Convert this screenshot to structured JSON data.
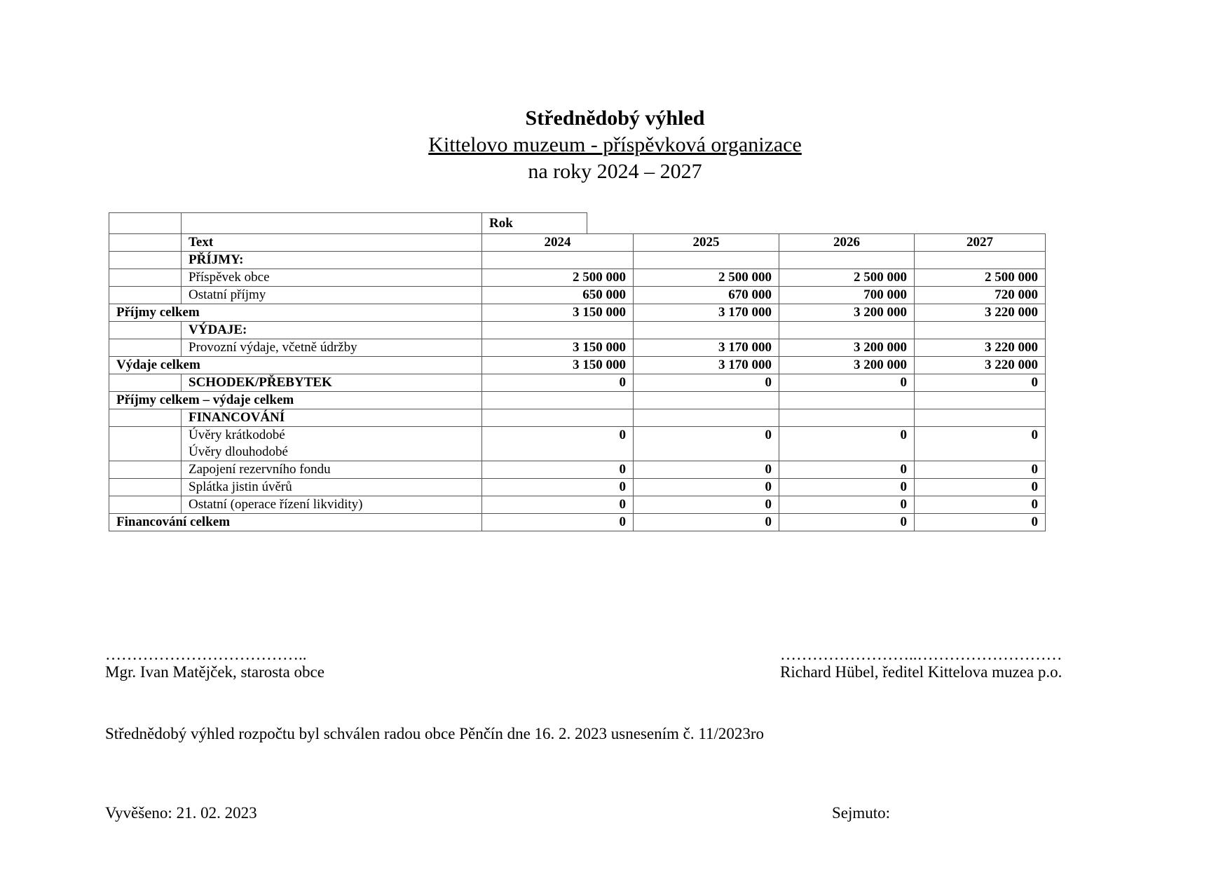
{
  "header": {
    "title": "Střednědobý výhled",
    "organization": "Kittelovo muzeum - příspěvková organizace",
    "period": "na roky 2024 – 2027"
  },
  "table": {
    "rok_label": "Rok",
    "text_label": "Text",
    "years": [
      "2024",
      "2025",
      "2026",
      "2027"
    ],
    "rows": [
      {
        "label": "PŘÍJMY:",
        "indent": true,
        "bold": true,
        "values": [
          "",
          "",
          "",
          ""
        ]
      },
      {
        "label": "Příspěvek obce",
        "indent": true,
        "bold": false,
        "values": [
          "2 500 000",
          "2 500 000",
          "2 500 000",
          "2 500 000"
        ]
      },
      {
        "label": "Ostatní příjmy",
        "indent": true,
        "bold": false,
        "values": [
          "650 000",
          "670 000",
          "700 000",
          "720 000"
        ]
      },
      {
        "label": "Příjmy celkem",
        "indent": false,
        "bold": true,
        "values": [
          "3 150 000",
          "3 170 000",
          "3 200 000",
          "3 220 000"
        ]
      },
      {
        "label": "VÝDAJE:",
        "indent": true,
        "bold": true,
        "values": [
          "",
          "",
          "",
          ""
        ]
      },
      {
        "label": "Provozní výdaje, včetně údržby",
        "indent": true,
        "bold": false,
        "values": [
          "3 150 000",
          "3 170 000",
          "3 200 000",
          "3 220 000"
        ]
      },
      {
        "label": "Výdaje celkem",
        "indent": false,
        "bold": true,
        "values": [
          "3 150 000",
          "3 170 000",
          "3 200 000",
          "3 220 000"
        ]
      },
      {
        "label": "SCHODEK/PŘEBYTEK",
        "indent": true,
        "bold": true,
        "values": [
          "0",
          "0",
          "0",
          "0"
        ]
      },
      {
        "label": "Příjmy celkem – výdaje celkem",
        "indent": false,
        "bold": true,
        "values": [
          "",
          "",
          "",
          ""
        ]
      },
      {
        "label": "FINANCOVÁNÍ",
        "indent": true,
        "bold": true,
        "values": [
          "",
          "",
          "",
          ""
        ]
      },
      {
        "label": "Úvěry krátkodobé",
        "label2": "Úvěry dlouhodobé",
        "indent": true,
        "bold": false,
        "values": [
          "0",
          "0",
          "0",
          "0"
        ]
      },
      {
        "label": "Zapojení rezervního fondu",
        "indent": true,
        "bold": false,
        "values": [
          "0",
          "0",
          "0",
          "0"
        ]
      },
      {
        "label": "Splátka jistin úvěrů",
        "indent": true,
        "bold": false,
        "values": [
          "0",
          "0",
          "0",
          "0"
        ]
      },
      {
        "label": "Ostatní (operace řízení likvidity)",
        "indent": true,
        "bold": false,
        "values": [
          "0",
          "0",
          "0",
          "0"
        ]
      },
      {
        "label": "Financování celkem",
        "indent": false,
        "bold": true,
        "values": [
          "0",
          "0",
          "0",
          "0"
        ]
      }
    ]
  },
  "signatures": {
    "left_dots": "………………………………..",
    "left_name": "Mgr. Ivan Matějček, starosta obce",
    "right_dots": "……………………..………………………",
    "right_name": "Richard Hübel, ředitel Kittelova muzea p.o."
  },
  "approval": "Střednědobý výhled rozpočtu byl schválen radou obce Pěnčín dne 16. 2. 2023 usnesením č. 11/2023ro",
  "footer": {
    "posted": "Vyvěšeno: 21. 02. 2023",
    "removed": "Sejmuto:"
  }
}
